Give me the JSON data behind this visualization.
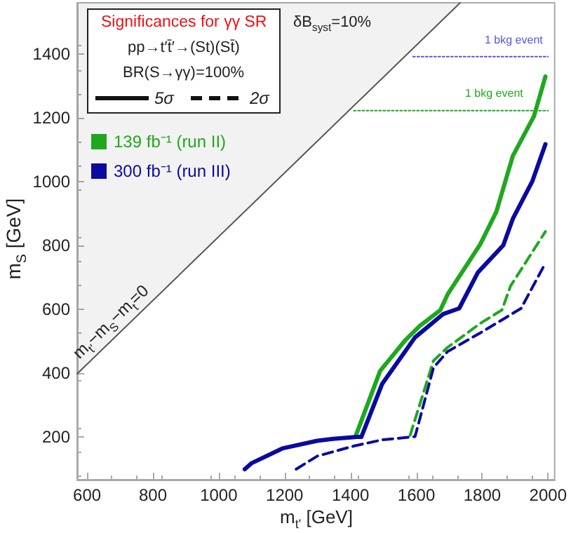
{
  "chart_data": {
    "type": "line",
    "title": "Significances for γγ SR",
    "xlabel": "m$_{t'}$ [GeV]",
    "ylabel": "m$_{S}$ [GeV]",
    "xlim": [
      570,
      2020
    ],
    "xticks": [
      600,
      800,
      1000,
      1200,
      1400,
      1600,
      1800,
      2000
    ],
    "ylim": [
      65,
      1560
    ],
    "yticks": [
      200,
      400,
      600,
      800,
      1000,
      1200,
      1400
    ],
    "grid": false,
    "legend": "top left",
    "marker": "none",
    "annotations": [
      "pp→t′t̄′→(St)(St̄)",
      "BR(S→γγ)=100%",
      "5σ",
      "2σ",
      "δB$_{syst}$=10%",
      "m$_{t'}$−m$_{S}$−m$_{t}$=0",
      "1 bkg event",
      "1 bkg event"
    ],
    "series": [
      {
        "type": "area",
        "color": "#555555",
        "line_style": "solid",
        "x": [
          570,
          1733
        ],
        "values": [
          397,
          1560
        ]
      },
      {
        "name": "139 fb⁻¹ (run II)",
        "color": "#1fa81f",
        "line_style": "solid",
        "x": [
          1415,
          1490,
          1567,
          1610,
          1673,
          1695,
          1794,
          1843,
          1893,
          1957,
          1992
        ],
        "values": [
          200,
          406,
          503,
          547,
          597,
          646,
          803,
          905,
          1080,
          1204,
          1329
        ]
      },
      {
        "name": "300 fb⁻¹ (run III)",
        "color": "#0a0aa0",
        "line_style": "solid",
        "x": [
          1079,
          1100,
          1193,
          1299,
          1347,
          1419,
          1433,
          1496,
          1596,
          1681,
          1730,
          1787,
          1864,
          1893,
          1952,
          1992
        ],
        "values": [
          98,
          117,
          163,
          187,
          193,
          199,
          199,
          365,
          511,
          584,
          602,
          715,
          800,
          883,
          1000,
          1117
        ]
      },
      {
        "color": "#1fa81f",
        "line_style": "dashed",
        "x": [
          1581,
          1652,
          1695,
          1794,
          1860,
          1886,
          1992
        ],
        "values": [
          204,
          438,
          480,
          555,
          597,
          672,
          843
        ]
      },
      {
        "color": "#0a0aa0",
        "line_style": "dashed",
        "x": [
          1235,
          1299,
          1412,
          1496,
          1596,
          1652,
          1695,
          1794,
          1918,
          1992
        ],
        "values": [
          98,
          139,
          171,
          190,
          200,
          416,
          467,
          525,
          602,
          744
        ]
      },
      {
        "color": "#1fa81f",
        "line_style": "dotted",
        "x": [
          1410,
          2000
        ],
        "values": [
          1222,
          1222
        ]
      },
      {
        "color": "#5555dd",
        "line_style": "dotted",
        "x": [
          1590,
          2000
        ],
        "values": [
          1391,
          1391
        ]
      }
    ]
  }
}
